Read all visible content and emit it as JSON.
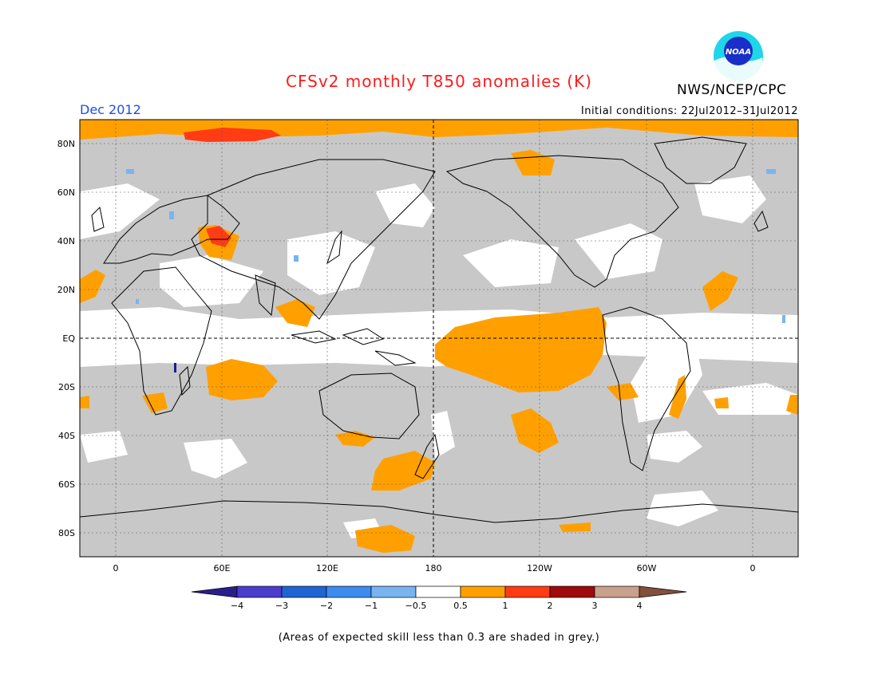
{
  "header": {
    "title": "CFSv2 monthly T850 anomalies (K)",
    "period": "Dec 2012",
    "initial_conditions": "Initial conditions: 22Jul2012–31Jul2012",
    "organization": "NWS/NCEP/CPC",
    "logo_text": "NOAA"
  },
  "map": {
    "lat_labels": [
      "80N",
      "60N",
      "40N",
      "20N",
      "EQ",
      "20S",
      "40S",
      "60S",
      "80S"
    ],
    "lon_labels": [
      "0",
      "60E",
      "120E",
      "180",
      "120W",
      "60W",
      "0"
    ],
    "colors": {
      "skill_grey": "#c8c8c8",
      "anom_0_5_1": "#ffa000",
      "anom_1_2": "#ff3c14",
      "anom_neg_0_5": "#78b4f0",
      "anom_neg_4": "#1e1e8c"
    }
  },
  "colorbar": {
    "labels": [
      "−4",
      "−3",
      "−2",
      "−1",
      "−0.5",
      "0.5",
      "1",
      "2",
      "3",
      "4"
    ],
    "colors": [
      "#2b1e8c",
      "#4b3ccd",
      "#1e64d2",
      "#3c8cf0",
      "#78b4f0",
      "#ffffff",
      "#ffa000",
      "#ff3c14",
      "#a00a0a",
      "#c8a08c",
      "#82503c"
    ]
  },
  "note": "(Areas of expected skill less than 0.3 are shaded in grey.)"
}
